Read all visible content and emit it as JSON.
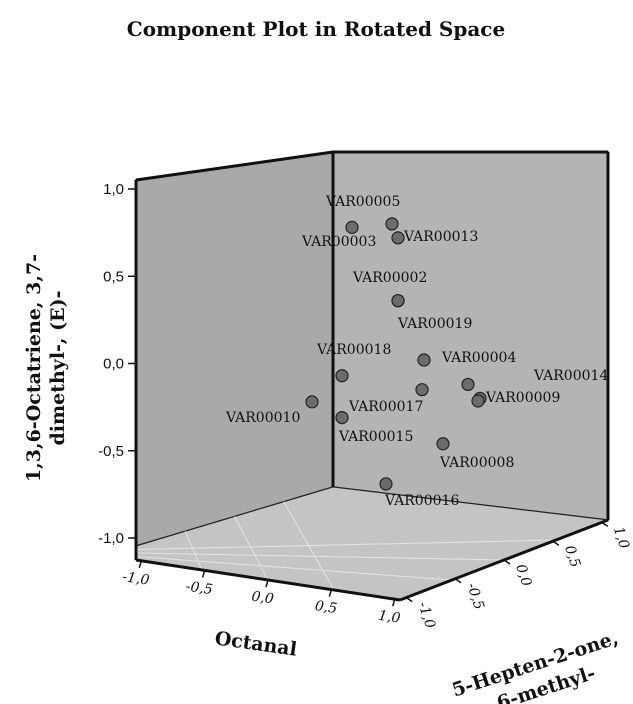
{
  "chart_data": {
    "type": "scatter",
    "subtype": "3d",
    "title": "Component Plot in Rotated Space",
    "axes": {
      "x": {
        "label": "Octanal",
        "range": [
          -1.0,
          1.0
        ],
        "ticks": [
          "-1,0",
          "-0,5",
          "0,0",
          "0,5",
          "1,0"
        ]
      },
      "y": {
        "label_lines": [
          "1,3,6-Octatriene, 3,7-",
          "dimethyl-, (E)-"
        ],
        "range": [
          -1.0,
          1.0
        ],
        "ticks": [
          "1,0",
          "0,5",
          "0,0",
          "-0,5",
          "-1,0"
        ]
      },
      "z": {
        "label_lines": [
          "5-Hepten-2-one,",
          "6-methyl-"
        ],
        "range": [
          -1.0,
          1.0
        ],
        "ticks": [
          "1,0",
          "0,5",
          "0,0",
          "-0,5",
          "-1,0"
        ]
      }
    },
    "points": [
      {
        "name": "VAR00005",
        "y": 0.8
      },
      {
        "name": "VAR00003",
        "y": 0.78
      },
      {
        "name": "VAR00013",
        "y": 0.72
      },
      {
        "name": "VAR00002",
        "y": 0.36
      },
      {
        "name": "VAR00019",
        "y": 0.36
      },
      {
        "name": "VAR00018",
        "y": -0.07
      },
      {
        "name": "VAR00004",
        "y": 0.02
      },
      {
        "name": "VAR00014",
        "y": -0.12
      },
      {
        "name": "VAR00009",
        "y": -0.2
      },
      {
        "name": "VAR00017",
        "y": -0.15
      },
      {
        "name": "VAR00010",
        "y": -0.22
      },
      {
        "name": "VAR00015",
        "y": -0.31
      },
      {
        "name": "VAR00008",
        "y": -0.46
      },
      {
        "name": "VAR00016",
        "y": -0.69
      }
    ],
    "grid": true
  },
  "colors": {
    "back_wall": "#a9a9a9",
    "side_wall": "#b4b4b4",
    "floor": "#c4c4c4",
    "point_fill": "#6c6c6c"
  }
}
